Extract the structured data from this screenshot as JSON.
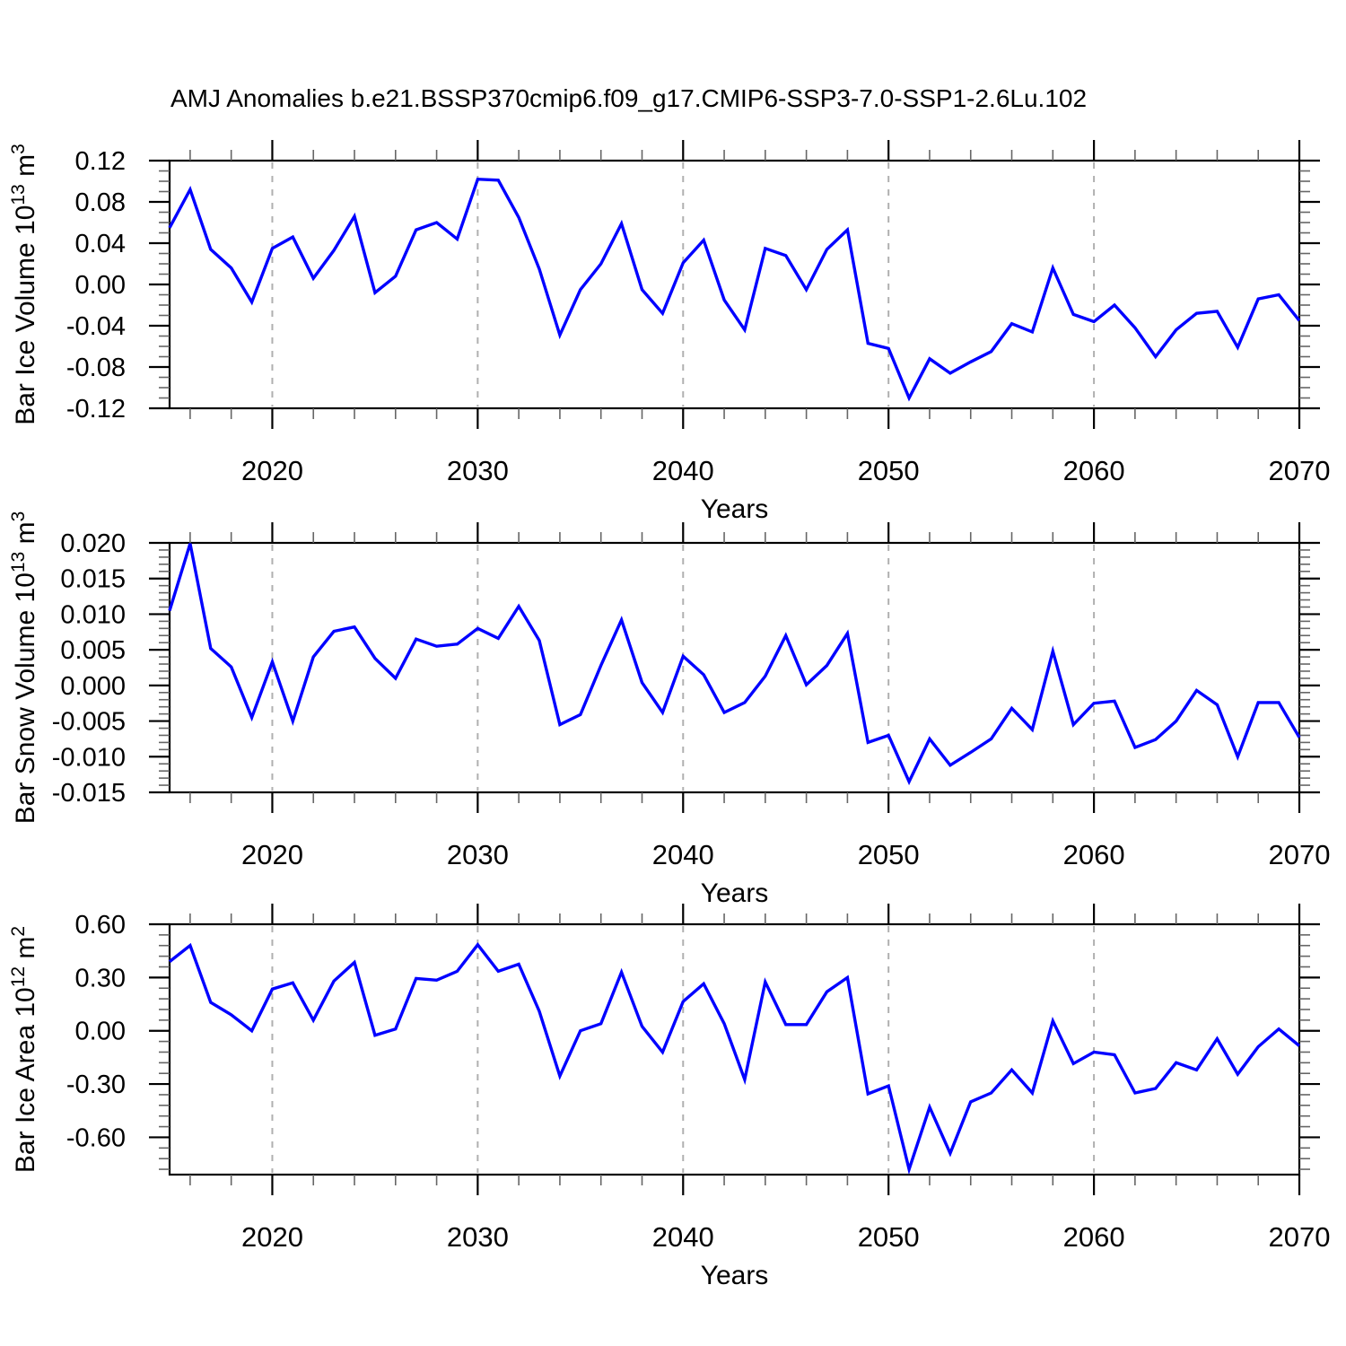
{
  "title": "AMJ Anomalies b.e21.BSSP370cmip6.f09_g17.CMIP6-SSP3-7.0-SSP1-2.6Lu.102",
  "colors": {
    "line": "#0000ff",
    "grid": "#b0b0b0",
    "axis": "#000000",
    "minor_tick": "#666666",
    "background": "#ffffff"
  },
  "x_axis": {
    "label": "Years",
    "range": [
      2015,
      2070
    ],
    "tick_values": [
      2020,
      2030,
      2040,
      2050,
      2060,
      2070
    ],
    "tick_labels": [
      "2020",
      "2030",
      "2040",
      "2050",
      "2060",
      "2070"
    ],
    "minor_step": 2,
    "gridlines": [
      2020,
      2030,
      2040,
      2050,
      2060
    ]
  },
  "years": [
    2015,
    2016,
    2017,
    2018,
    2019,
    2020,
    2021,
    2022,
    2023,
    2024,
    2025,
    2026,
    2027,
    2028,
    2029,
    2030,
    2031,
    2032,
    2033,
    2034,
    2035,
    2036,
    2037,
    2038,
    2039,
    2040,
    2041,
    2042,
    2043,
    2044,
    2045,
    2046,
    2047,
    2048,
    2049,
    2050,
    2051,
    2052,
    2053,
    2054,
    2055,
    2056,
    2057,
    2058,
    2059,
    2060,
    2061,
    2062,
    2063,
    2064,
    2065,
    2066,
    2067,
    2068,
    2069,
    2070
  ],
  "chart_data": [
    {
      "type": "line",
      "ylabel": "Bar Ice Volume",
      "ylabel_scale_base": "10",
      "ylabel_scale_exp": "13",
      "ylabel_unit": "m",
      "ylabel_unit_exp": "3",
      "ylim": [
        -0.12,
        0.12
      ],
      "ytick_values": [
        0.12,
        0.08,
        0.04,
        0.0,
        -0.04,
        -0.08,
        -0.12
      ],
      "ytick_labels": [
        "0.12",
        "0.08",
        "0.04",
        "0.00",
        "-0.04",
        "-0.08",
        "-0.12"
      ],
      "ytick_minor_step": 0.01,
      "grid": "vertical-dashed",
      "legend": "none",
      "values": [
        0.055,
        0.092,
        0.034,
        0.016,
        -0.017,
        0.035,
        0.046,
        0.006,
        0.033,
        0.066,
        -0.008,
        0.008,
        0.053,
        0.06,
        0.044,
        0.102,
        0.101,
        0.065,
        0.015,
        -0.049,
        -0.005,
        0.02,
        0.059,
        -0.005,
        -0.028,
        0.021,
        0.043,
        -0.015,
        -0.044,
        0.035,
        0.028,
        -0.005,
        0.034,
        0.053,
        -0.057,
        -0.062,
        -0.11,
        -0.072,
        -0.086,
        -0.075,
        -0.065,
        -0.038,
        -0.046,
        0.016,
        -0.029,
        -0.036,
        -0.02,
        -0.042,
        -0.07,
        -0.044,
        -0.028,
        -0.026,
        -0.061,
        -0.014,
        -0.01,
        -0.035
      ]
    },
    {
      "type": "line",
      "ylabel": "Bar Snow Volume",
      "ylabel_scale_base": "10",
      "ylabel_scale_exp": "13",
      "ylabel_unit": "m",
      "ylabel_unit_exp": "3",
      "ylim": [
        -0.015,
        0.02
      ],
      "ytick_values": [
        0.02,
        0.015,
        0.01,
        0.005,
        0.0,
        -0.005,
        -0.01,
        -0.015
      ],
      "ytick_labels": [
        "0.020",
        "0.015",
        "0.010",
        "0.005",
        "0.000",
        "-0.005",
        "-0.010",
        "-0.015"
      ],
      "ytick_minor_step": 0.001,
      "grid": "vertical-dashed",
      "legend": "none",
      "values": [
        0.0105,
        0.0199,
        0.0052,
        0.0026,
        -0.0045,
        0.0033,
        -0.005,
        0.004,
        0.0076,
        0.0082,
        0.0038,
        0.001,
        0.0065,
        0.0055,
        0.0058,
        0.008,
        0.0066,
        0.0111,
        0.0063,
        -0.0055,
        -0.0041,
        0.0028,
        0.0092,
        0.0004,
        -0.0038,
        0.0041,
        0.0015,
        -0.0038,
        -0.0024,
        0.0013,
        0.007,
        0.0001,
        0.0028,
        0.0073,
        -0.008,
        -0.007,
        -0.0135,
        -0.0075,
        -0.0112,
        -0.0094,
        -0.0075,
        -0.0032,
        -0.0062,
        0.0048,
        -0.0055,
        -0.0025,
        -0.0022,
        -0.0087,
        -0.0076,
        -0.005,
        -0.0007,
        -0.0027,
        -0.01,
        -0.0024,
        -0.0024,
        -0.0073
      ]
    },
    {
      "type": "line",
      "ylabel": "Bar Ice Area",
      "ylabel_scale_base": "10",
      "ylabel_scale_exp": "12",
      "ylabel_unit": "m",
      "ylabel_unit_exp": "2",
      "ylim": [
        -0.81,
        0.6
      ],
      "ytick_values": [
        0.6,
        0.3,
        0.0,
        -0.3,
        -0.6
      ],
      "ytick_labels": [
        "0.60",
        "0.30",
        "0.00",
        "-0.30",
        "-0.60"
      ],
      "ytick_minor_step": 0.06,
      "grid": "vertical-dashed",
      "legend": "none",
      "values": [
        0.39,
        0.48,
        0.16,
        0.09,
        0.0,
        0.235,
        0.27,
        0.06,
        0.28,
        0.385,
        -0.025,
        0.01,
        0.295,
        0.285,
        0.335,
        0.485,
        0.335,
        0.375,
        0.11,
        -0.255,
        0.0,
        0.04,
        0.33,
        0.025,
        -0.12,
        0.165,
        0.265,
        0.04,
        -0.275,
        0.275,
        0.035,
        0.035,
        0.22,
        0.3,
        -0.355,
        -0.31,
        -0.78,
        -0.43,
        -0.69,
        -0.4,
        -0.35,
        -0.22,
        -0.35,
        0.055,
        -0.185,
        -0.12,
        -0.135,
        -0.35,
        -0.325,
        -0.18,
        -0.22,
        -0.045,
        -0.245,
        -0.09,
        0.01,
        -0.085
      ]
    }
  ]
}
